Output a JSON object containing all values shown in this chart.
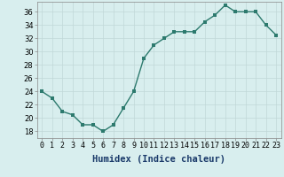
{
  "x": [
    0,
    1,
    2,
    3,
    4,
    5,
    6,
    7,
    8,
    9,
    10,
    11,
    12,
    13,
    14,
    15,
    16,
    17,
    18,
    19,
    20,
    21,
    22,
    23
  ],
  "y": [
    24,
    23,
    21,
    20.5,
    19,
    19,
    18,
    19,
    21.5,
    24,
    29,
    31,
    32,
    33,
    33,
    33,
    34.5,
    35.5,
    37,
    36,
    36,
    36,
    34,
    32.5
  ],
  "line_color": "#2d7a6e",
  "marker_color": "#2d7a6e",
  "bg_color": "#d8eeee",
  "grid_color": "#c0d8d8",
  "xlabel": "Humidex (Indice chaleur)",
  "ylim": [
    17,
    37.5
  ],
  "xlim": [
    -0.5,
    23.5
  ],
  "yticks": [
    18,
    20,
    22,
    24,
    26,
    28,
    30,
    32,
    34,
    36
  ],
  "xticks": [
    0,
    1,
    2,
    3,
    4,
    5,
    6,
    7,
    8,
    9,
    10,
    11,
    12,
    13,
    14,
    15,
    16,
    17,
    18,
    19,
    20,
    21,
    22,
    23
  ],
  "xtick_labels": [
    "0",
    "1",
    "2",
    "3",
    "4",
    "5",
    "6",
    "7",
    "8",
    "9",
    "10",
    "11",
    "12",
    "13",
    "14",
    "15",
    "16",
    "17",
    "18",
    "19",
    "20",
    "21",
    "22",
    "23"
  ],
  "xlabel_fontsize": 7.5,
  "tick_fontsize": 6,
  "linewidth": 1.0,
  "markersize": 2.5
}
